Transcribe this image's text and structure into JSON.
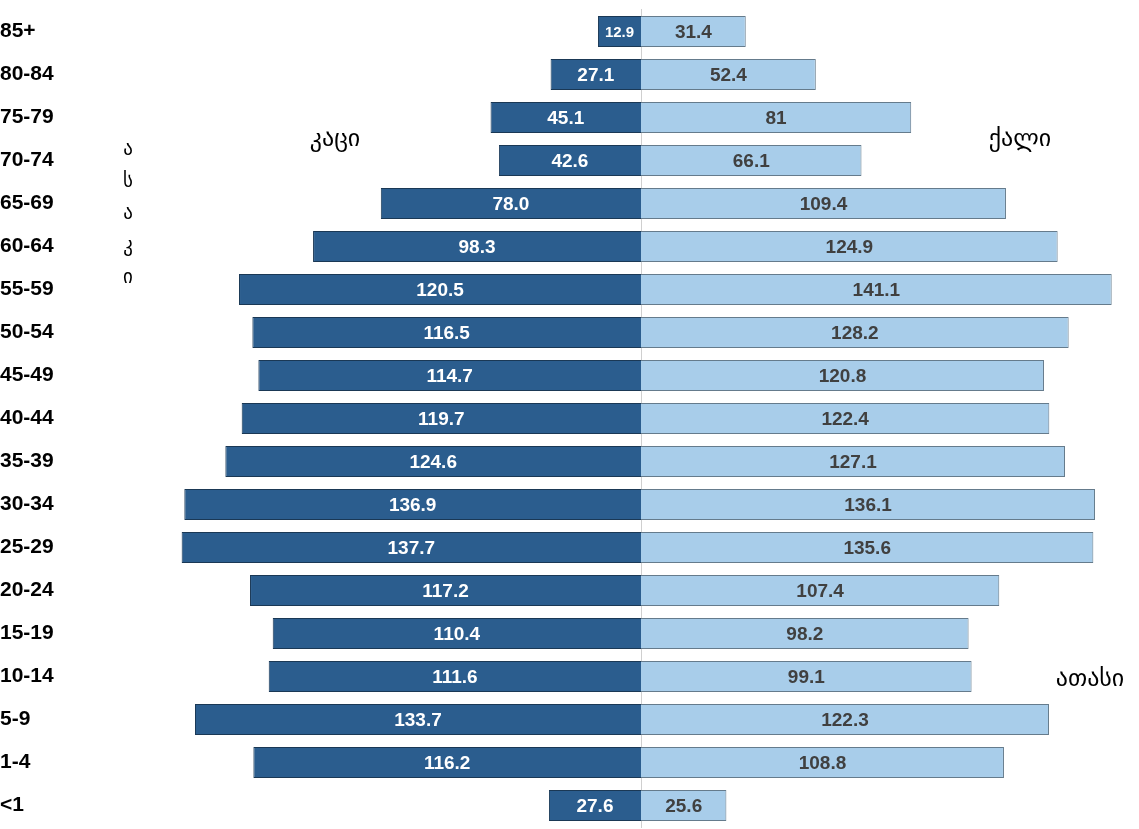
{
  "chart_data": [
    {
      "type": "bar",
      "orientation": "horizontal",
      "ylabel": "ასაკი",
      "tick_labels": "y",
      "categories": [
        "85+",
        "80-84",
        "75-79",
        "70-74",
        "65-69",
        "60-64",
        "55-59",
        "50-54",
        "45-49",
        "40-44",
        "35-39",
        "30-34",
        "25-29",
        "20-24",
        "15-19",
        "10-14",
        "5-9",
        "1-4",
        "<1"
      ],
      "series": [
        {
          "name": "კაცი",
          "color": "#2b5d8e",
          "values": [
            12.9,
            27.1,
            45.1,
            42.6,
            78.0,
            98.3,
            120.5,
            116.5,
            114.7,
            119.7,
            124.6,
            136.9,
            137.7,
            117.2,
            110.4,
            111.6,
            133.7,
            116.2,
            27.6
          ],
          "value_labels": [
            "12.9",
            "27.1",
            "45.1",
            "42.6",
            "78.0",
            "98.3",
            "120.5",
            "116.5",
            "114.7",
            "119.7",
            "124.6",
            "136.9",
            "137.7",
            "117.2",
            "110.4",
            "111.6",
            "133.7",
            "116.2",
            "27.6"
          ]
        }
      ]
    },
    {
      "type": "bar",
      "orientation": "horizontal",
      "tick_labels": false,
      "categories": [
        null,
        null,
        null,
        null,
        null,
        null,
        null,
        null,
        null,
        null,
        null,
        null,
        null,
        null,
        null,
        null,
        null,
        null,
        null
      ],
      "series": [
        {
          "name": "ქალი",
          "color": "#a8cdea",
          "values": [
            31.4,
            52.4,
            81,
            66.1,
            109.4,
            124.9,
            141.1,
            128.2,
            120.8,
            122.4,
            127.1,
            136.1,
            135.6,
            107.4,
            98.2,
            99.1,
            122.3,
            108.8,
            25.6
          ],
          "value_labels": [
            "31.4",
            "52.4",
            "81",
            "66.1",
            "109.4",
            "124.9",
            "141.1",
            "128.2",
            "120.8",
            "122.4",
            "127.1",
            "136.1",
            "135.6",
            "107.4",
            "98.2",
            "99.1",
            "122.3",
            "108.8",
            "25.6"
          ]
        }
      ],
      "annotations": [
        "ათასი"
      ]
    }
  ]
}
